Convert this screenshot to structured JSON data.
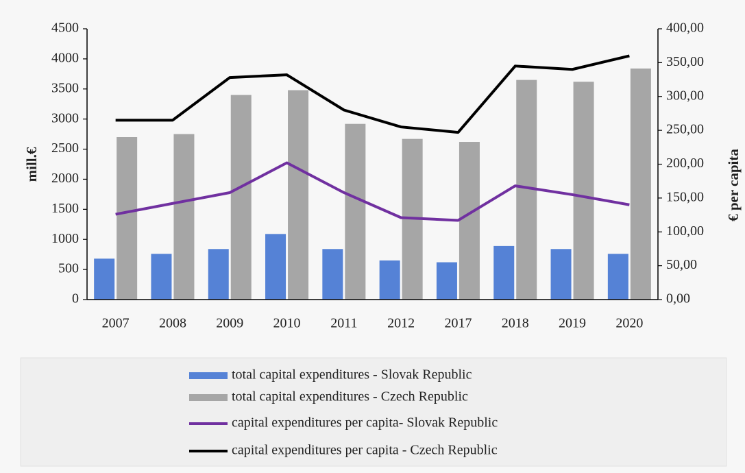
{
  "chart_data": {
    "type": "bar",
    "categories": [
      "2007",
      "2008",
      "2009",
      "2010",
      "2011",
      "2012",
      "2017",
      "2018",
      "2019",
      "2020"
    ],
    "ylabel": "mill.€",
    "y2label": "€ per capita",
    "ylim": [
      0,
      4500
    ],
    "yticks": [
      0,
      500,
      1000,
      1500,
      2000,
      2500,
      3000,
      3500,
      4000,
      4500
    ],
    "y2lim": [
      0,
      400
    ],
    "y2ticks": [
      {
        "value": 0,
        "label": "0,00"
      },
      {
        "value": 50,
        "label": "50,00"
      },
      {
        "value": 100,
        "label": "100,00"
      },
      {
        "value": 150,
        "label": "150,00"
      },
      {
        "value": 200,
        "label": "200,00"
      },
      {
        "value": 250,
        "label": "250,00"
      },
      {
        "value": 300,
        "label": "300,00"
      },
      {
        "value": 350,
        "label": "350,00"
      },
      {
        "value": 400,
        "label": "400,00"
      }
    ],
    "grid": false,
    "legend": "bottom",
    "series": [
      {
        "name": "total capital expenditures - Slovak Republic",
        "type": "bar",
        "color": "#5582d6",
        "values": [
          680,
          760,
          840,
          1090,
          840,
          650,
          620,
          890,
          840,
          760
        ]
      },
      {
        "name": "total capital expenditures - Czech Republic",
        "type": "bar",
        "color": "#a6a6a6",
        "values": [
          2700,
          2750,
          3400,
          3480,
          2920,
          2670,
          2620,
          3650,
          3620,
          3840
        ]
      },
      {
        "name": "capital expenditures per capita- Slovak Republic",
        "type": "line",
        "axis": "y2",
        "color": "#7030a0",
        "values": [
          126,
          142,
          158,
          202,
          158,
          121,
          117,
          168,
          155,
          140
        ]
      },
      {
        "name": "capital expenditures per capita - Czech Republic",
        "type": "line",
        "axis": "y2",
        "color": "#000000",
        "values": [
          265,
          265,
          328,
          332,
          280,
          255,
          247,
          345,
          340,
          360
        ]
      }
    ]
  }
}
